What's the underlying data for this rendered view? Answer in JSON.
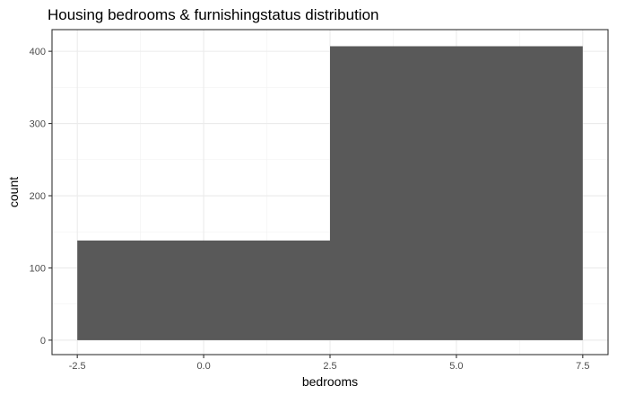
{
  "chart_data": {
    "type": "bar",
    "title": "Housing bedrooms & furnishingstatus distribution",
    "xlabel": "bedrooms",
    "ylabel": "count",
    "xlim": [
      -3.0,
      8.0
    ],
    "ylim": [
      -20,
      430
    ],
    "x_ticks": [
      -2.5,
      0.0,
      2.5,
      5.0,
      7.5
    ],
    "x_tick_labels": [
      "-2.5",
      "0.0",
      "2.5",
      "5.0",
      "7.5"
    ],
    "y_ticks": [
      0,
      100,
      200,
      300,
      400
    ],
    "y_tick_labels": [
      "0",
      "100",
      "200",
      "300",
      "400"
    ],
    "bins": [
      {
        "x_start": -2.5,
        "x_end": 2.5,
        "count": 138
      },
      {
        "x_start": 2.5,
        "x_end": 7.5,
        "count": 407
      }
    ],
    "bar_color": "#595959",
    "grid": true,
    "legend": "none"
  }
}
